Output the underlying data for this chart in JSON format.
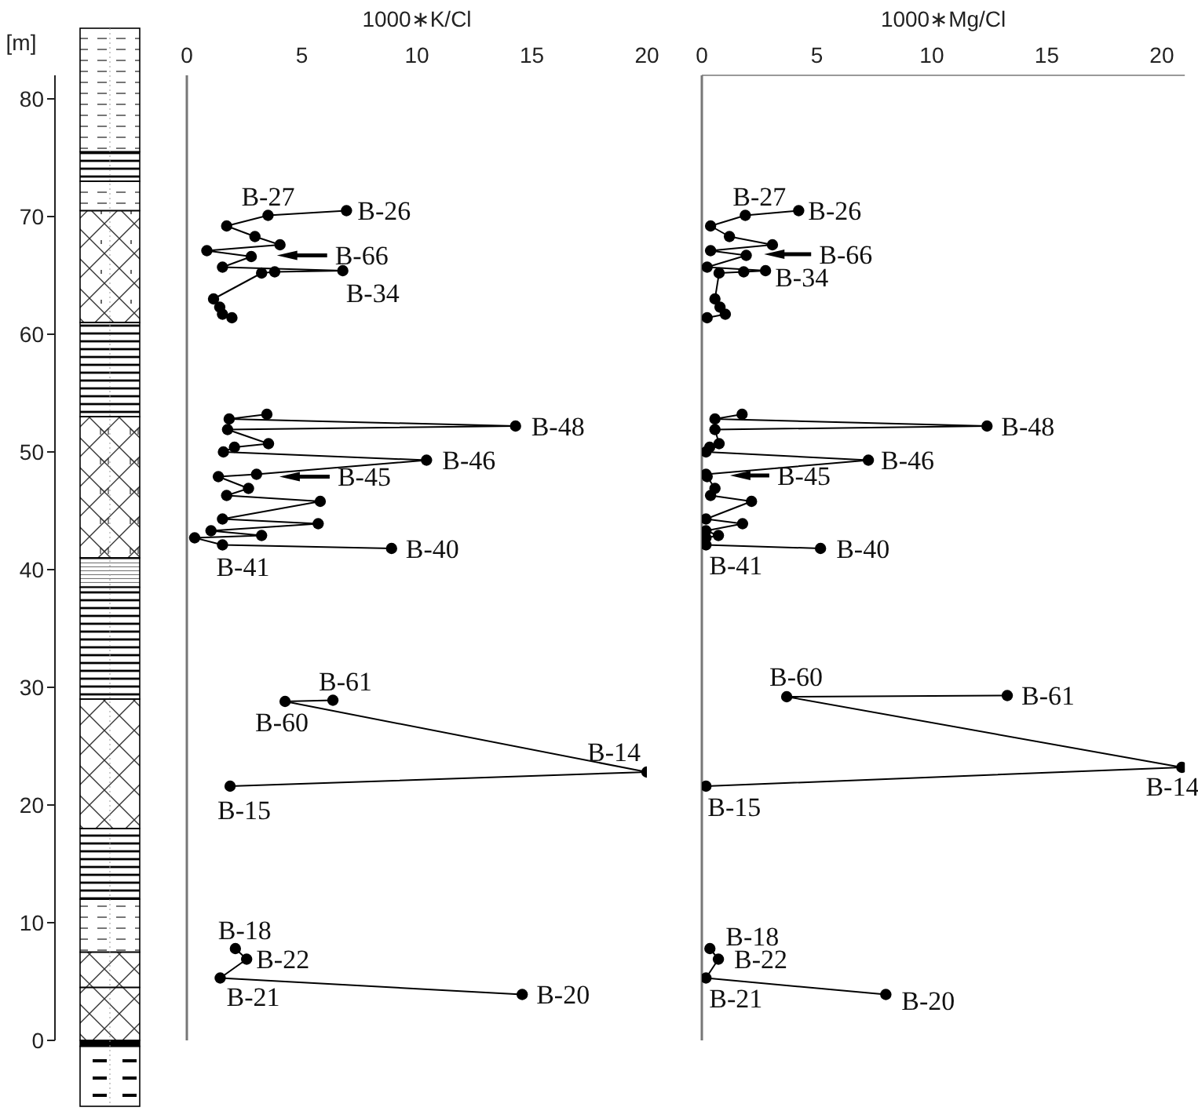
{
  "chart_data": [
    {
      "type": "line",
      "xlabel": "1000∗K/Cl",
      "ylabel": "[m]",
      "xlim": [
        0,
        20
      ],
      "xticks": [
        0,
        5,
        10,
        15,
        20
      ],
      "ylim": [
        0,
        82
      ],
      "yticks": [
        0,
        10,
        20,
        30,
        40,
        50,
        60,
        70,
        80
      ],
      "grid": false,
      "marker": "circle",
      "line_style": "solid",
      "series": [
        {
          "color": "#000000",
          "x": [
            6.94,
            3.53,
            1.73,
            2.96,
            4.05,
            0.87,
            2.8,
            1.55,
            6.78,
            3.82,
            3.25,
            1.16,
            1.43,
            1.55,
            1.96,
            null,
            3.48,
            1.84,
            14.29,
            1.77,
            3.55,
            2.07,
            1.59,
            10.42,
            3.03,
            1.37,
            2.68,
            1.73,
            5.8,
            1.55,
            5.71,
            1.05,
            3.25,
            0.34,
            1.55,
            8.9,
            null,
            6.35,
            4.27,
            20.0,
            1.88,
            null,
            2.11,
            2.6,
            1.45,
            14.58
          ],
          "values": [
            70.5,
            70.1,
            69.2,
            68.3,
            67.6,
            67.1,
            66.6,
            65.7,
            65.4,
            65.3,
            65.2,
            63.0,
            62.3,
            61.7,
            61.4,
            null,
            53.2,
            52.8,
            52.2,
            51.9,
            50.7,
            50.4,
            50.0,
            49.3,
            48.1,
            47.9,
            46.9,
            46.3,
            45.8,
            44.3,
            43.9,
            43.3,
            42.9,
            42.7,
            42.1,
            41.8,
            null,
            28.9,
            28.8,
            22.8,
            21.6,
            null,
            7.8,
            6.9,
            5.3,
            3.9
          ]
        }
      ],
      "annotations": [
        {
          "text": "B-27",
          "x": 3.53,
          "y": 70.1
        },
        {
          "text": "B-26",
          "x": 6.94,
          "y": 70.5
        },
        {
          "text": "B-66",
          "x": 3.71,
          "y": 66.7
        },
        {
          "text": "B-34",
          "x": 6.78,
          "y": 65.4
        },
        {
          "text": "B-48",
          "x": 14.29,
          "y": 52.2
        },
        {
          "text": "B-46",
          "x": 10.42,
          "y": 49.3
        },
        {
          "text": "B-45",
          "x": 3.82,
          "y": 47.9
        },
        {
          "text": "B-40",
          "x": 8.9,
          "y": 41.8
        },
        {
          "text": "B-41",
          "x": 1.55,
          "y": 42.1
        },
        {
          "text": "B-61",
          "x": 6.35,
          "y": 28.9
        },
        {
          "text": "B-60",
          "x": 4.27,
          "y": 28.8
        },
        {
          "text": "B-14",
          "x": 20.0,
          "y": 22.8
        },
        {
          "text": "B-15",
          "x": 1.88,
          "y": 21.6
        },
        {
          "text": "B-18",
          "x": 2.11,
          "y": 7.8
        },
        {
          "text": "B-22",
          "x": 2.6,
          "y": 6.9
        },
        {
          "text": "B-21",
          "x": 1.45,
          "y": 5.3
        },
        {
          "text": "B-20",
          "x": 14.58,
          "y": 3.9
        }
      ]
    },
    {
      "type": "line",
      "xlabel": "1000∗Mg/Cl",
      "xlim": [
        0,
        21
      ],
      "xticks": [
        0,
        5,
        10,
        15,
        20
      ],
      "ylim": [
        0,
        82
      ],
      "tick_labels": "x",
      "grid": false,
      "marker": "circle",
      "line_style": "solid",
      "series": [
        {
          "color": "#000000",
          "x": [
            4.21,
            1.89,
            0.38,
            1.2,
            3.07,
            0.38,
            1.93,
            0.23,
            2.77,
            1.82,
            0.75,
            0.57,
            0.79,
            1.02,
            0.23,
            null,
            1.75,
            0.57,
            12.4,
            0.57,
            0.75,
            0.34,
            0.18,
            7.24,
            0.18,
            0.23,
            0.57,
            0.38,
            2.16,
            0.18,
            1.77,
            0.18,
            0.72,
            0.18,
            0.18,
            5.16,
            null,
            13.28,
            3.69,
            20.87,
            0.18,
            null,
            0.35,
            0.72,
            0.18,
            8.0
          ],
          "values": [
            70.5,
            70.1,
            69.2,
            68.3,
            67.6,
            67.1,
            66.7,
            65.7,
            65.4,
            65.3,
            65.2,
            63.0,
            62.3,
            61.7,
            61.4,
            null,
            53.2,
            52.8,
            52.2,
            51.9,
            50.7,
            50.4,
            50.0,
            49.3,
            48.1,
            47.9,
            46.9,
            46.3,
            45.8,
            44.3,
            43.9,
            43.3,
            42.9,
            42.7,
            42.1,
            41.8,
            null,
            29.3,
            29.2,
            23.2,
            21.6,
            null,
            7.8,
            6.9,
            5.3,
            3.9
          ]
        }
      ],
      "annotations": [
        {
          "text": "B-27",
          "x": 1.89,
          "y": 70.1
        },
        {
          "text": "B-26",
          "x": 4.21,
          "y": 70.5
        },
        {
          "text": "B-66",
          "x": 2.5,
          "y": 66.8
        },
        {
          "text": "B-34",
          "x": 2.77,
          "y": 65.4
        },
        {
          "text": "B-48",
          "x": 12.4,
          "y": 52.2
        },
        {
          "text": "B-46",
          "x": 7.24,
          "y": 49.3
        },
        {
          "text": "B-45",
          "x": 1.02,
          "y": 48.0
        },
        {
          "text": "B-40",
          "x": 5.16,
          "y": 41.8
        },
        {
          "text": "B-41",
          "x": 0.18,
          "y": 42.1
        },
        {
          "text": "B-60",
          "x": 3.69,
          "y": 29.2
        },
        {
          "text": "B-61",
          "x": 13.28,
          "y": 29.3
        },
        {
          "text": "B-14",
          "x": 20.87,
          "y": 23.2
        },
        {
          "text": "B-15",
          "x": 0.18,
          "y": 21.6
        },
        {
          "text": "B-18",
          "x": 0.35,
          "y": 7.8
        },
        {
          "text": "B-22",
          "x": 0.72,
          "y": 6.9
        },
        {
          "text": "B-21",
          "x": 0.18,
          "y": 5.3
        },
        {
          "text": "B-20",
          "x": 8.0,
          "y": 3.9
        }
      ]
    }
  ]
}
